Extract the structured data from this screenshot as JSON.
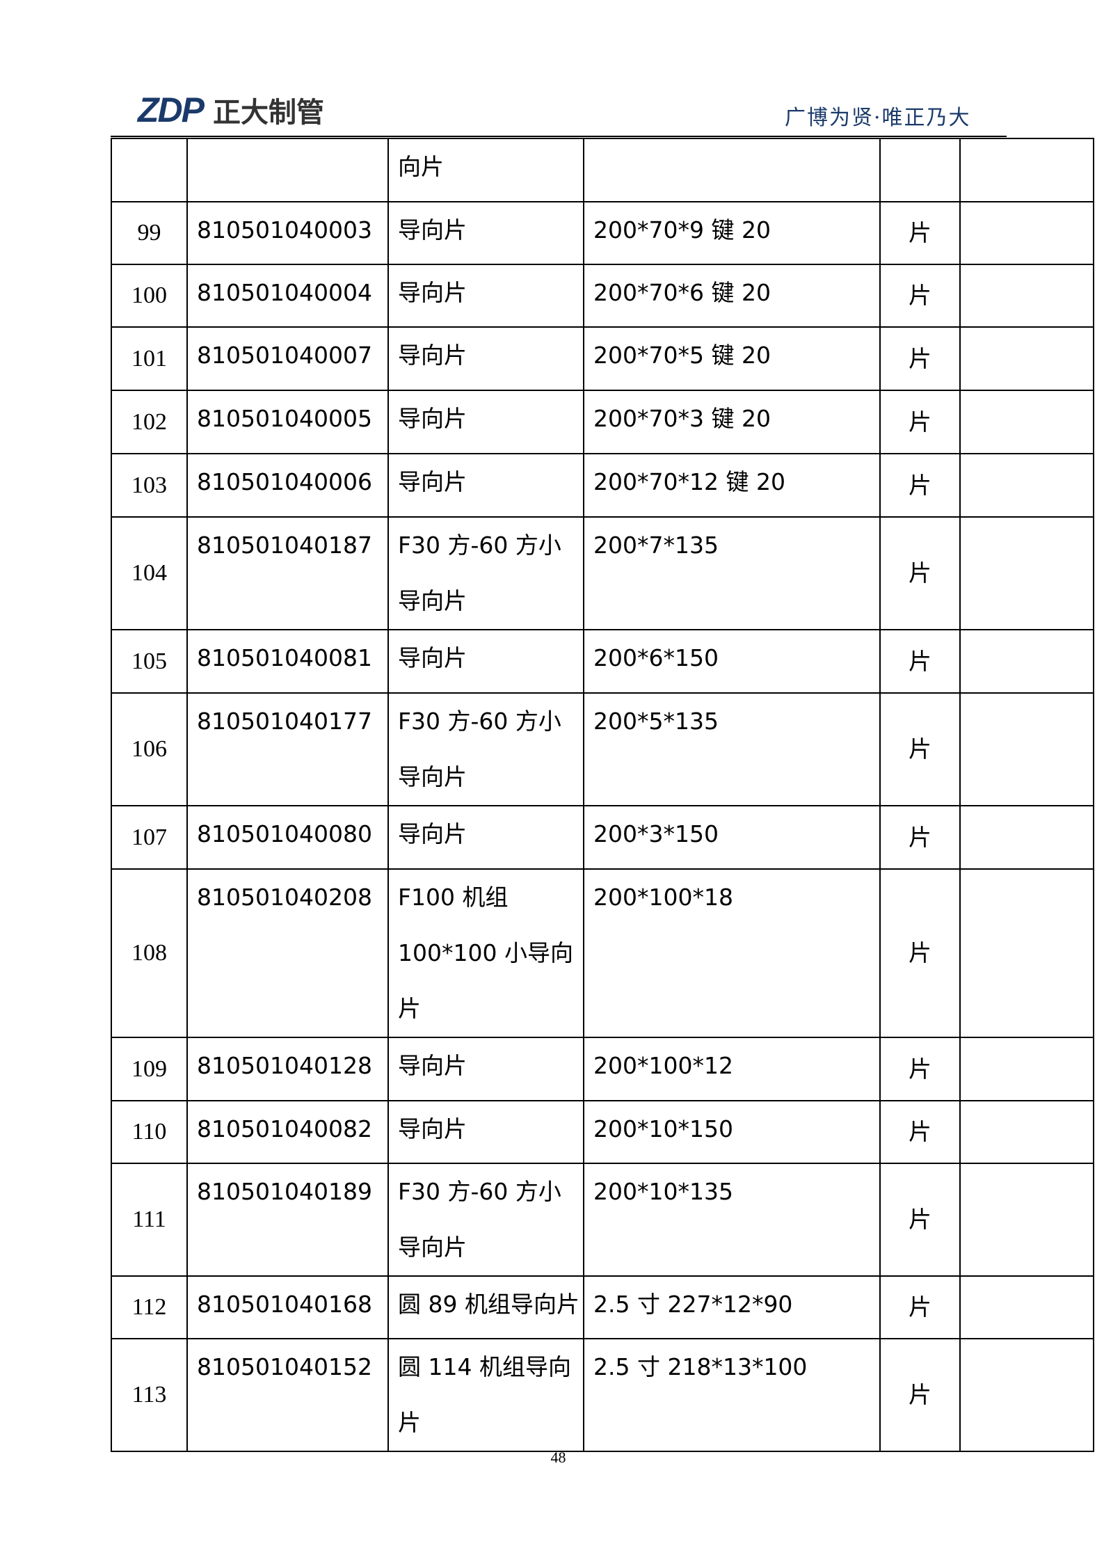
{
  "header": {
    "logo_mark": "ZDP",
    "logo_text": "正大制管",
    "slogan": "广博为贤·唯正乃大",
    "brand_color": "#1b3a6b"
  },
  "table": {
    "rows": [
      {
        "no": "",
        "code": "",
        "name": "向片",
        "spec": "",
        "unit": "",
        "remark": ""
      },
      {
        "no": "99",
        "code": "810501040003",
        "name": "导向片",
        "spec": "200*70*9 键 20",
        "unit": "片",
        "remark": ""
      },
      {
        "no": "100",
        "code": "810501040004",
        "name": "导向片",
        "spec": "200*70*6 键 20",
        "unit": "片",
        "remark": ""
      },
      {
        "no": "101",
        "code": "810501040007",
        "name": "导向片",
        "spec": "200*70*5 键 20",
        "unit": "片",
        "remark": ""
      },
      {
        "no": "102",
        "code": "810501040005",
        "name": "导向片",
        "spec": "200*70*3 键 20",
        "unit": "片",
        "remark": ""
      },
      {
        "no": "103",
        "code": "810501040006",
        "name": "导向片",
        "spec": "200*70*12 键 20",
        "unit": "片",
        "remark": ""
      },
      {
        "no": "104",
        "code": "810501040187",
        "name": "F30 方-60 方小导向片",
        "spec": "200*7*135",
        "unit": "片",
        "remark": ""
      },
      {
        "no": "105",
        "code": "810501040081",
        "name": "导向片",
        "spec": "200*6*150",
        "unit": "片",
        "remark": ""
      },
      {
        "no": "106",
        "code": "810501040177",
        "name": "F30 方-60 方小导向片",
        "spec": "200*5*135",
        "unit": "片",
        "remark": ""
      },
      {
        "no": "107",
        "code": "810501040080",
        "name": "导向片",
        "spec": "200*3*150",
        "unit": "片",
        "remark": ""
      },
      {
        "no": "108",
        "code": "810501040208",
        "name": "F100 机组 100*100 小导向片",
        "spec": "200*100*18",
        "unit": "片",
        "remark": ""
      },
      {
        "no": "109",
        "code": "810501040128",
        "name": "导向片",
        "spec": "200*100*12",
        "unit": "片",
        "remark": ""
      },
      {
        "no": "110",
        "code": "810501040082",
        "name": "导向片",
        "spec": "200*10*150",
        "unit": "片",
        "remark": ""
      },
      {
        "no": "111",
        "code": "810501040189",
        "name": "F30 方-60 方小导向片",
        "spec": "200*10*135",
        "unit": "片",
        "remark": ""
      },
      {
        "no": "112",
        "code": "810501040168",
        "name": "圆 89 机组导向片",
        "spec": "2.5 寸 227*12*90",
        "unit": "片",
        "remark": ""
      },
      {
        "no": "113",
        "code": "810501040152",
        "name": "圆 114 机组导向片",
        "spec": "2.5 寸 218*13*100",
        "unit": "片",
        "remark": ""
      }
    ]
  },
  "footer": {
    "page_number": "48"
  }
}
